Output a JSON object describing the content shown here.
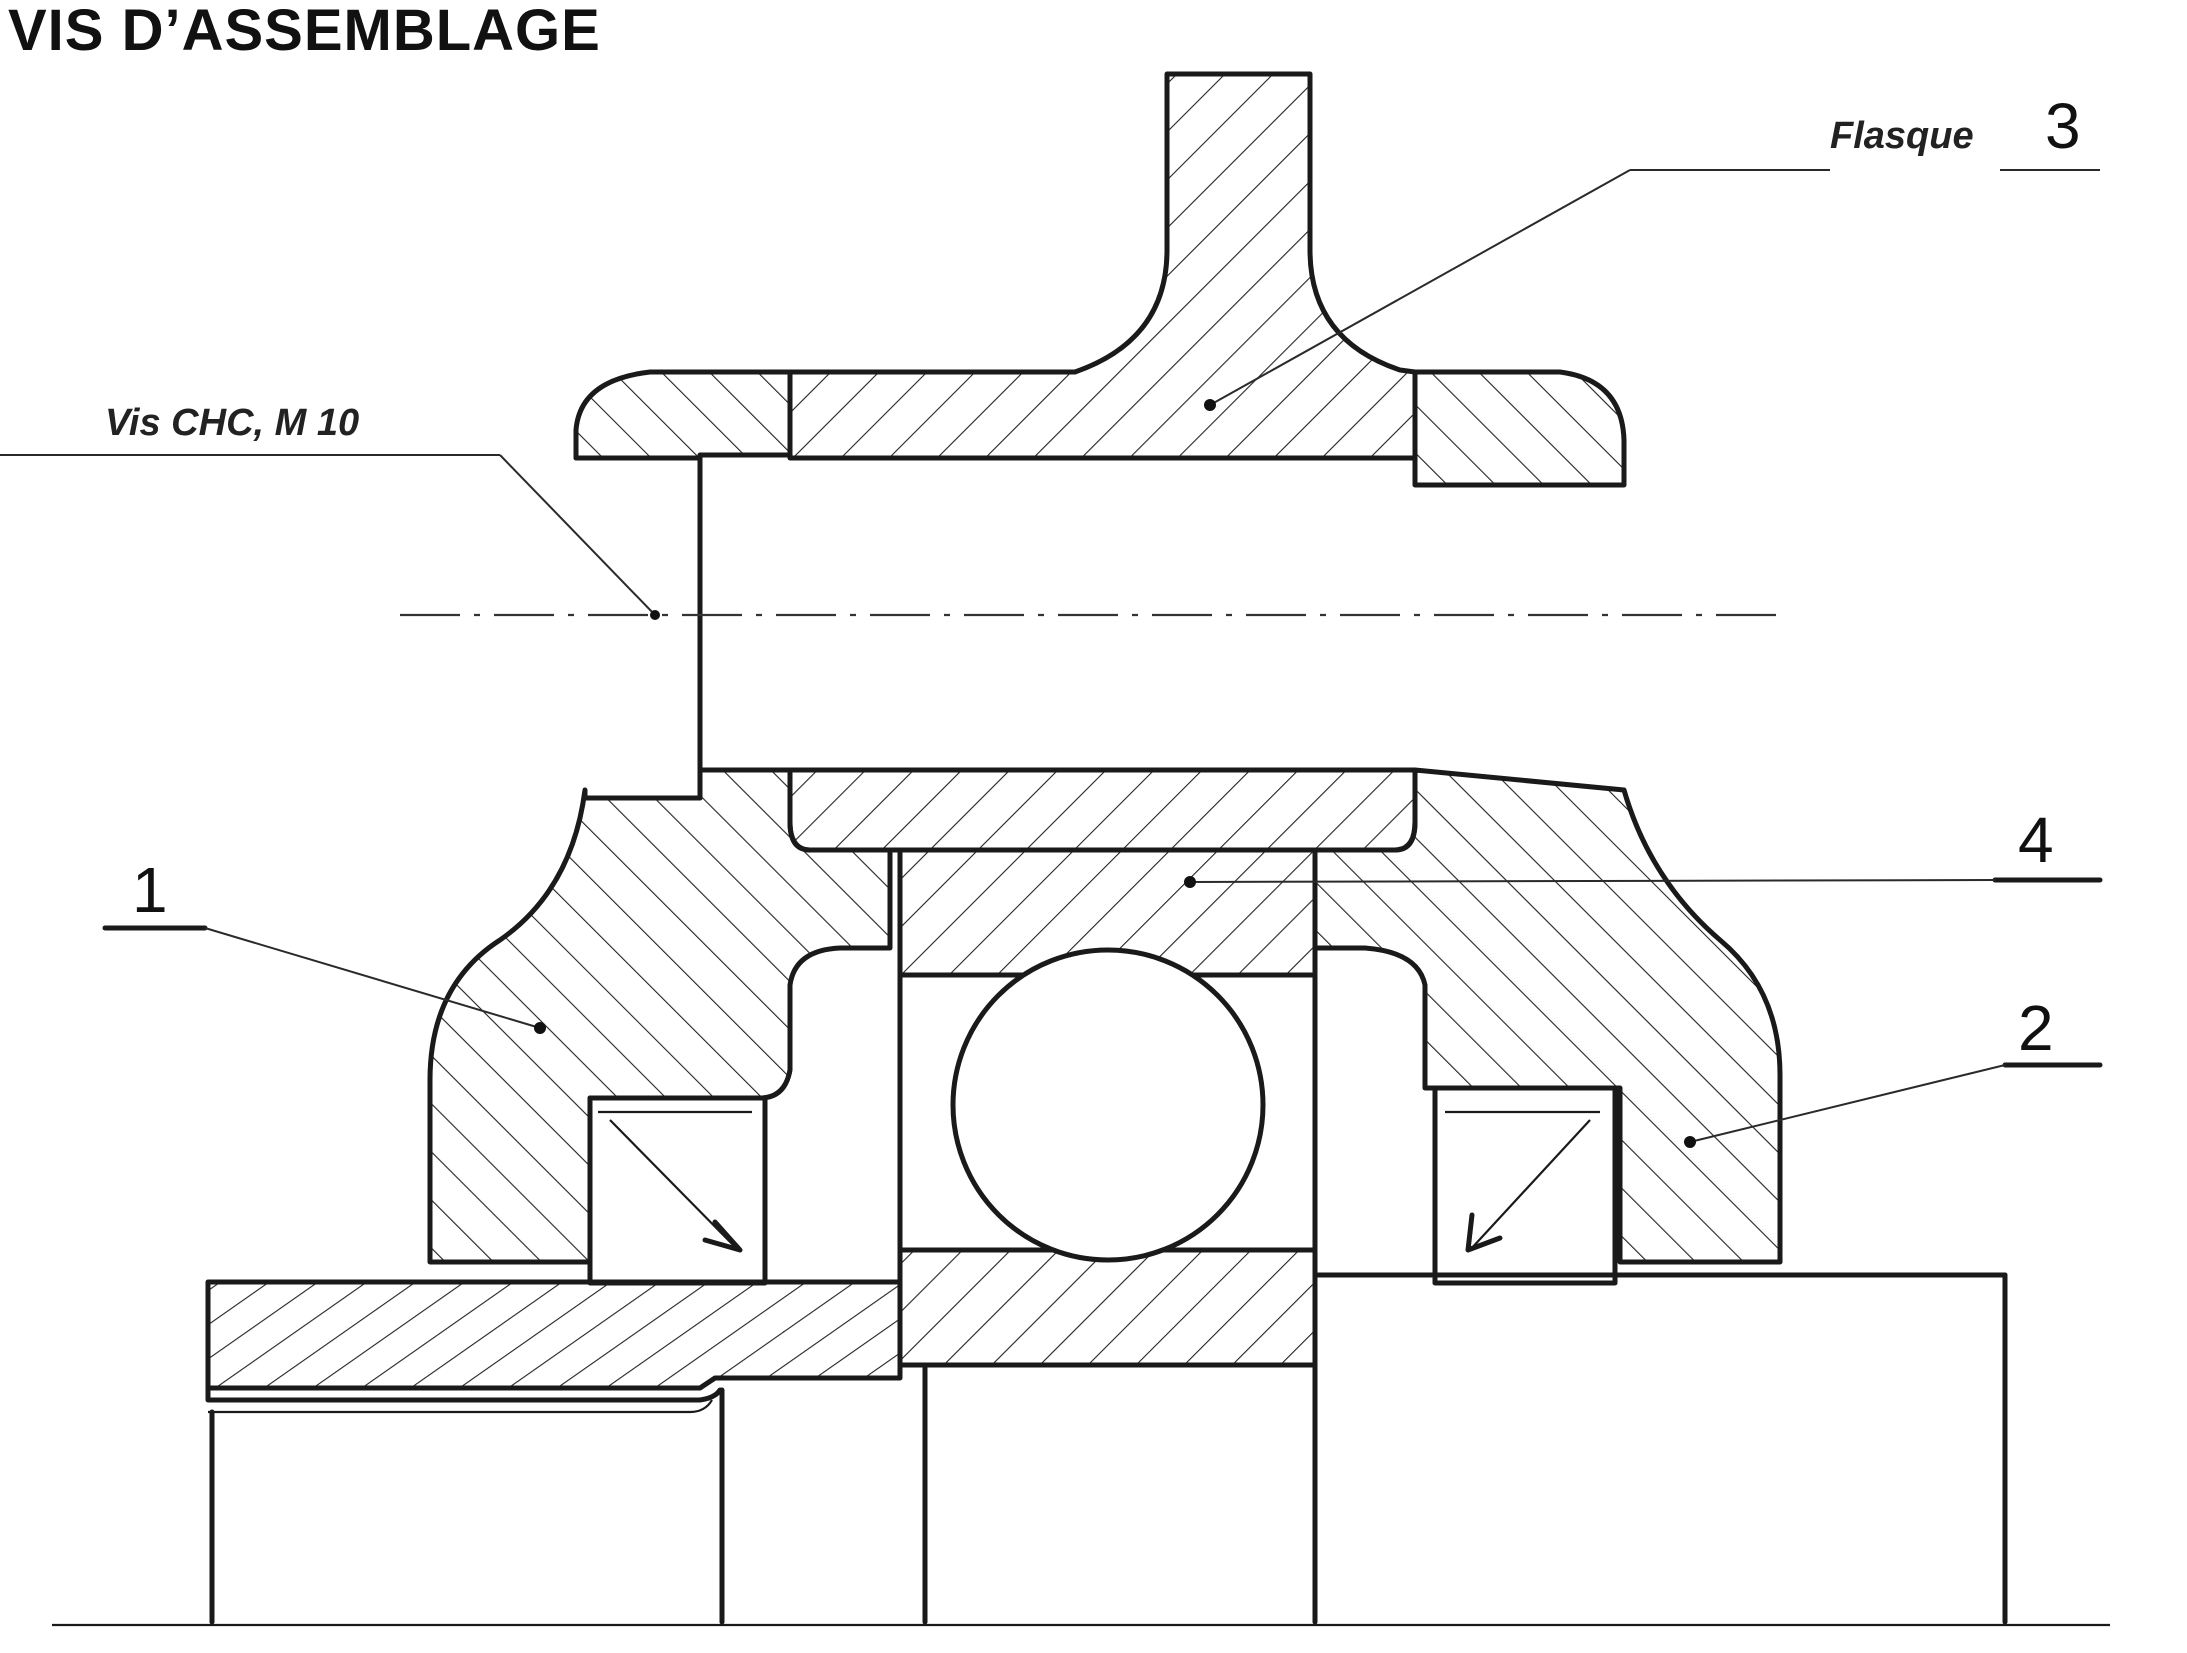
{
  "title": "VIS D’ASSEMBLAGE",
  "labels": {
    "screw": "Vis CHC, M 10",
    "flange_name": "Flasque",
    "flange_number": "3",
    "part1": "1",
    "part2": "2",
    "part4": "4"
  },
  "colors": {
    "ink": "#1a1a1a",
    "paper": "#ffffff"
  }
}
